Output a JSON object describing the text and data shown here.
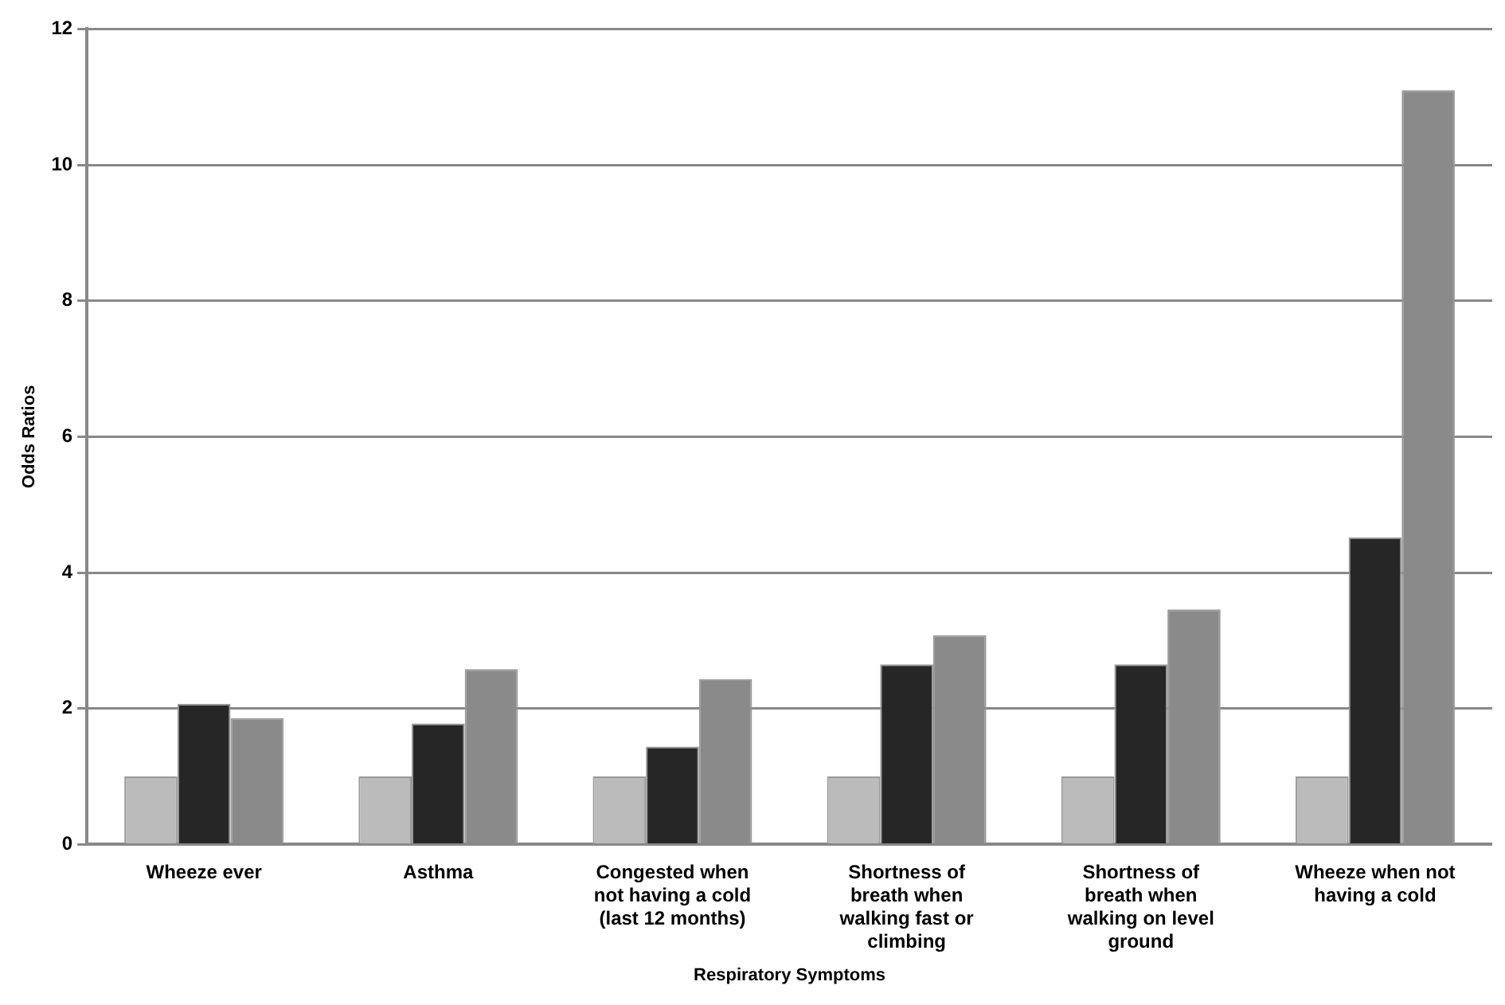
{
  "chart_data": {
    "type": "bar",
    "xlabel": "Respiratory Symptoms",
    "ylabel": "Odds Ratios",
    "categories": [
      "Wheeze ever",
      "Asthma",
      "Congested when not having a cold (last 12 months)",
      "Shortness of breath when walking fast or climbing",
      "Shortness of breath when walking on level ground",
      "Wheeze when not having a cold"
    ],
    "series": [
      {
        "color": "#bbbbbb",
        "values": [
          1,
          1,
          1,
          1,
          1,
          1
        ]
      },
      {
        "color": "#262626",
        "values": [
          2.07,
          1.78,
          1.44,
          2.65,
          2.65,
          4.52
        ]
      },
      {
        "color": "#8a8a8a",
        "values": [
          1.86,
          2.58,
          2.43,
          3.08,
          3.46,
          11.1
        ]
      }
    ],
    "ylim": [
      0,
      12
    ],
    "yticks": [
      0,
      2,
      4,
      6,
      8,
      10,
      12
    ],
    "grid": "y",
    "legend": false
  }
}
